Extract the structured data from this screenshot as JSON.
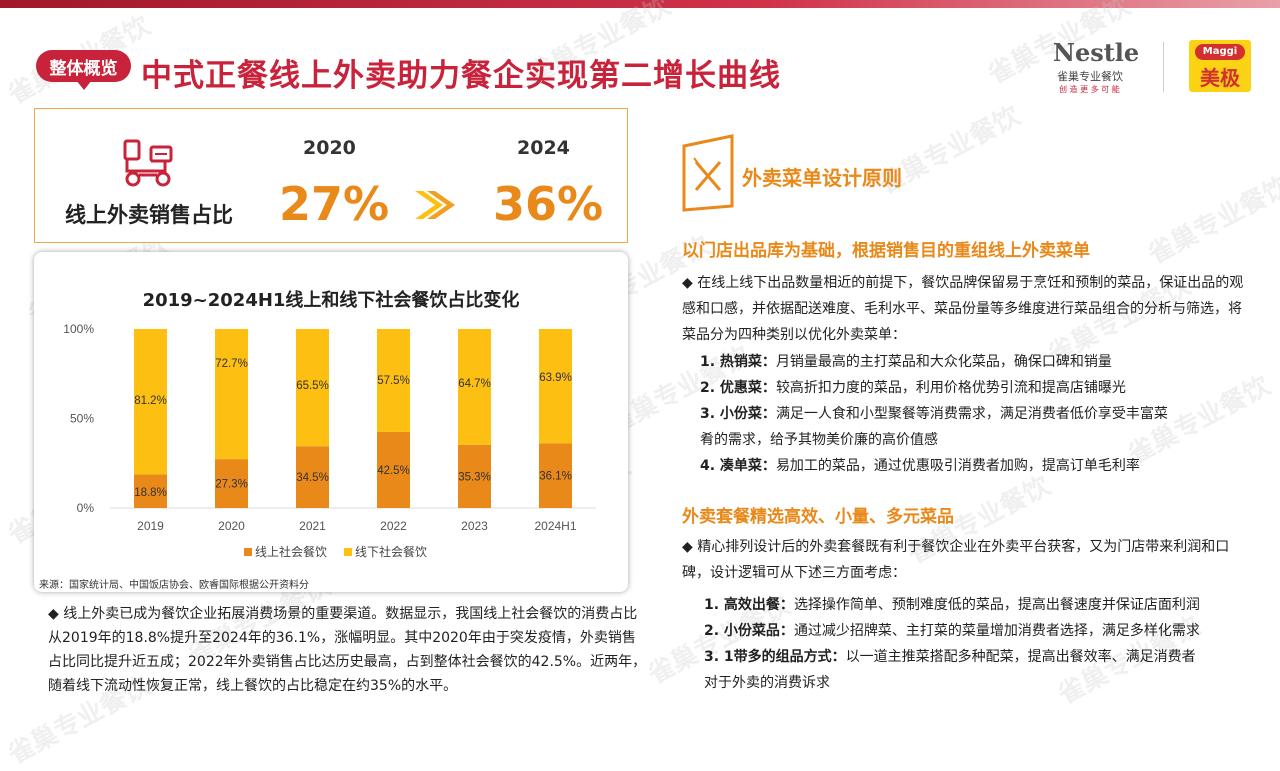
{
  "header": {
    "badge": "整体概览",
    "title": "中式正餐线上外卖助力餐企实现第二增长曲线",
    "logo_nestle": "Nestle",
    "logo_nestle_sub": "雀巢专业餐饮",
    "logo_nestle_slogan": "创 造 更 多 可 能",
    "logo_maggi_top": "Maggi",
    "logo_maggi_name": "美极"
  },
  "watermark": "雀巢专业餐饮",
  "stat": {
    "label": "线上外卖销售占比",
    "year_a": "2020",
    "value_a": "27%",
    "year_b": "2024",
    "value_b": "36%"
  },
  "colors": {
    "accent": "#e8891a",
    "brand_red": "#c8233a",
    "online": "#e8891a",
    "offline": "#fcbf12"
  },
  "chart_data": {
    "type": "bar",
    "stacked": true,
    "title": "2019~2024H1线上和线下社会餐饮占比变化",
    "categories": [
      "2019",
      "2020",
      "2021",
      "2022",
      "2023",
      "2024H1"
    ],
    "series": [
      {
        "name": "线上社会餐饮",
        "values": [
          18.8,
          27.3,
          34.5,
          42.5,
          35.3,
          36.1
        ],
        "labels": [
          "18.8%",
          "27.3%",
          "34.5%",
          "42.5%",
          "35.3%",
          "36.1%"
        ]
      },
      {
        "name": "线下社会餐饮",
        "values": [
          81.2,
          72.7,
          65.5,
          57.5,
          64.7,
          63.9
        ],
        "labels": [
          "81.2%",
          "72.7%",
          "65.5%",
          "57.5%",
          "64.7%",
          "63.9%"
        ]
      }
    ],
    "ylim": [
      0,
      100
    ],
    "yticks": [
      "0%",
      "50%",
      "100%"
    ],
    "legend_position": "bottom",
    "grid": false
  },
  "source": "来源：国家统计局、中国饭店协会、欧睿国际根据公开资料分",
  "left_paragraph": "◆ 线上外卖已成为餐饮企业拓展消费场景的重要渠道。数据显示，我国线上社会餐饮的消费占比从2019年的18.8%提升至2024年的36.1%，涨幅明显。其中2020年由于突发疫情，外卖销售占比同比提升近五成；2022年外卖销售占比达历史最高，占到整体社会餐饮的42.5%。近两年，随着线下流动性恢复正常，线上餐饮的占比稳定在约35%的水平。",
  "right": {
    "section_title": "外卖菜单设计原则",
    "block1": {
      "heading": "以门店出品库为基础，根据销售目的重组线上外卖菜单",
      "intro": "◆ 在线上线下出品数量相近的前提下，餐饮品牌保留易于烹饪和预制的菜品，保证出品的观感和口感，并依据配送难度、毛利水平、菜品份量等多维度进行菜品组合的分析与筛选，将菜品分为四种类别以优化外卖菜单：",
      "items": [
        {
          "num": "1. 热销菜：",
          "text": "月销量最高的主打菜品和大众化菜品，确保口碑和销量"
        },
        {
          "num": "2. 优惠菜：",
          "text": "较高折扣力度的菜品，利用价格优势引流和提高店铺曝光"
        },
        {
          "num": "3. 小份菜：",
          "text": "满足一人食和小型聚餐等消费需求，满足消费者低价享受丰富菜"
        },
        {
          "num": "",
          "text": "肴的需求，给予其物美价廉的高价值感"
        },
        {
          "num": "4. 凑单菜：",
          "text": "易加工的菜品，通过优惠吸引消费者加购，提高订单毛利率"
        }
      ]
    },
    "block2": {
      "heading": "外卖套餐精选高效、小量、多元菜品",
      "intro": "◆ 精心排列设计后的外卖套餐既有利于餐饮企业在外卖平台获客，又为门店带来利润和口碑，设计逻辑可从下述三方面考虑：",
      "items": [
        {
          "num": "1. 高效出餐：",
          "text": "选择操作简单、预制难度低的菜品，提高出餐速度并保证店面利润"
        },
        {
          "num": "2. 小份菜品：",
          "text": "通过减少招牌菜、主打菜的菜量增加消费者选择，满足多样化需求"
        },
        {
          "num": "3. 1带多的组品方式：",
          "text": "以一道主推菜搭配多种配菜，提高出餐效率、满足消费者"
        },
        {
          "num": "",
          "text": "对于外卖的消费诉求"
        }
      ]
    }
  }
}
